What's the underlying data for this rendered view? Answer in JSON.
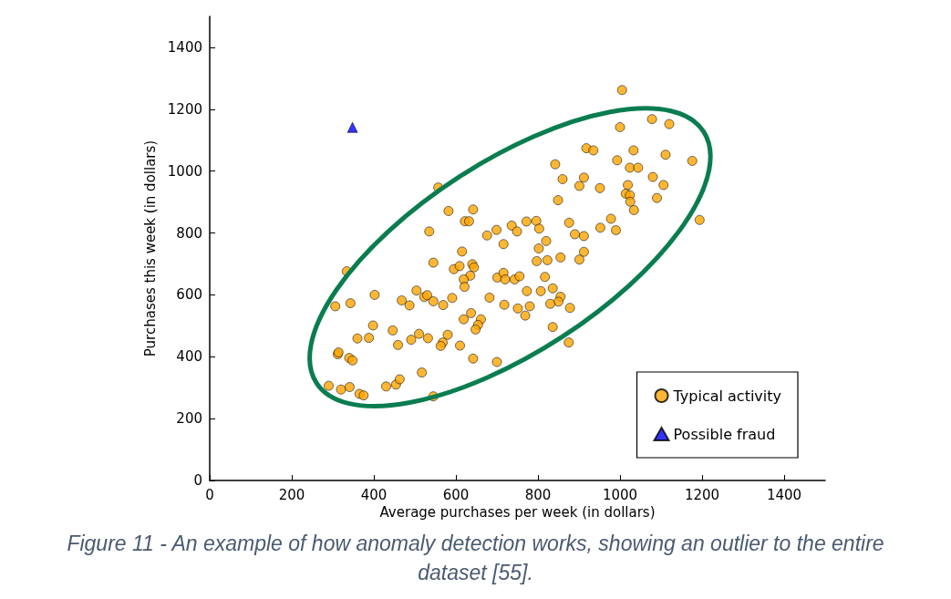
{
  "chart_data": {
    "type": "scatter",
    "xlabel": "Average purchases per week (in dollars)",
    "ylabel": "Purchases this week (in dollars)",
    "xlim": [
      0,
      1500
    ],
    "ylim": [
      0,
      1500
    ],
    "xticks": [
      0,
      200,
      400,
      600,
      800,
      1000,
      1200,
      1400
    ],
    "yticks": [
      0,
      200,
      400,
      600,
      800,
      1000,
      1200,
      1400
    ],
    "grid": false,
    "legend": "bottom right",
    "annotations": [
      "Figure 11 - An example of how anomaly detection works, showing an outlier to the entire dataset [55]."
    ],
    "series": [
      {
        "name": "Typical activity",
        "color": "#ffa500",
        "marker": "circle",
        "x": [
          557,
          582,
          642,
          622,
          632,
          535,
          676,
          699,
          615,
          334,
          545,
          595,
          609,
          640,
          644,
          635,
          619,
          621,
          701,
          306,
          343,
          402,
          468,
          487,
          504,
          523,
          530,
          545,
          569,
          591,
          682,
          637,
          619,
          661,
          654,
          648,
          398,
          360,
          388,
          446,
          459,
          491,
          510,
          532,
          580,
          568,
          563,
          610,
          312,
          314,
          340,
          348,
          642,
          700,
          517,
          290,
          320,
          341,
          365,
          375,
          430,
          454,
          463,
          545,
          918,
          935,
          1033,
          1111,
          1176,
          993,
          1024,
          1044,
          842,
          860,
          912,
          901,
          951,
          1080,
          1106,
          1019,
          1014,
          1024,
          1025,
          1034,
          1090,
          849,
          1194,
          736,
          749,
          772,
          796,
          803,
          716,
          820,
          802,
          797,
          823,
          855,
          876,
          890,
          912,
          912,
          901,
          952,
          990,
          978,
          716,
          720,
          743,
          755,
          817,
          773,
          807,
          836,
          855,
          850,
          830,
          878,
          718,
          751,
          780,
          769,
          836,
          875,
          1005,
          1000,
          1078,
          1120
        ],
        "values": [
          947,
          871,
          876,
          838,
          838,
          805,
          792,
          810,
          740,
          676,
          704,
          683,
          693,
          699,
          689,
          662,
          650,
          626,
          656,
          563,
          573,
          600,
          582,
          566,
          614,
          593,
          599,
          579,
          567,
          590,
          591,
          541,
          521,
          521,
          503,
          488,
          501,
          459,
          461,
          485,
          438,
          455,
          474,
          460,
          471,
          446,
          435,
          436,
          408,
          414,
          396,
          388,
          394,
          383,
          349,
          306,
          294,
          302,
          280,
          275,
          304,
          310,
          327,
          272,
          1074,
          1067,
          1067,
          1053,
          1033,
          1035,
          1011,
          1011,
          1022,
          974,
          979,
          952,
          945,
          981,
          955,
          955,
          927,
          922,
          901,
          874,
          913,
          906,
          842,
          824,
          805,
          837,
          839,
          814,
          764,
          774,
          750,
          709,
          712,
          721,
          833,
          796,
          790,
          739,
          714,
          817,
          809,
          846,
          671,
          650,
          650,
          660,
          658,
          612,
          612,
          621,
          594,
          578,
          571,
          558,
          568,
          556,
          563,
          533,
          496,
          446,
          1262,
          1142,
          1168,
          1152
        ]
      },
      {
        "name": "Possible fraud",
        "color": "#0000ff",
        "marker": "triangle",
        "x": [
          348
        ],
        "values": [
          1141
        ]
      }
    ]
  }
}
